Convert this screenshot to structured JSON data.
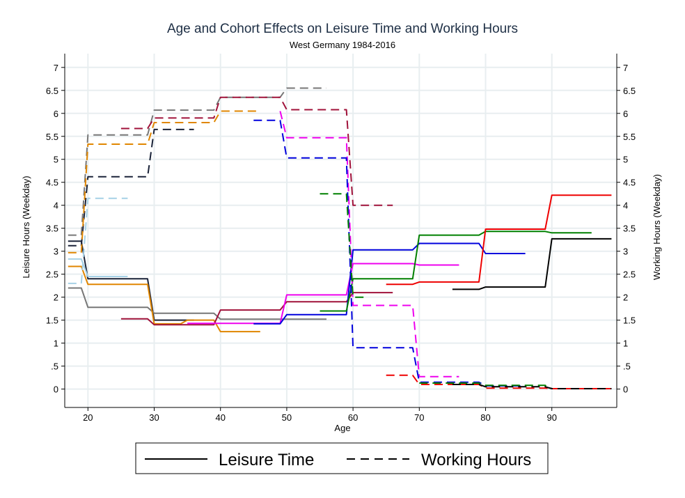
{
  "chart_data": {
    "type": "line",
    "title": "Age and Cohort Effects on Leisure Time and Working Hours",
    "subtitle": "West Germany 1984-2016",
    "xlabel": "Age",
    "ylabel_left": "Leisure Hours (Weekday)",
    "ylabel_right": "Working Hours (Weekday)",
    "xlim": [
      16.5,
      99.8
    ],
    "ylim": [
      -0.4,
      7.3
    ],
    "xticks": [
      "20",
      "30",
      "40",
      "50",
      "60",
      "70",
      "80",
      "90"
    ],
    "yticks_left": [
      "0",
      ".5",
      "1",
      "1.5",
      "2",
      "2.5",
      "3",
      "3.5",
      "4",
      "4.5",
      "5",
      "5.5",
      "6",
      "6.5",
      "7"
    ],
    "yticks_right": [
      "0",
      ".5",
      "1",
      "1.5",
      "2",
      "2.5",
      "3",
      "3.5",
      "4",
      "4.5",
      "5",
      "5.5",
      "6",
      "6.5",
      "7"
    ],
    "grid": true,
    "legend": {
      "position": "bottom",
      "entries": [
        {
          "label": "Leisure Time",
          "style": "solid"
        },
        {
          "label": "Working Hours",
          "style": "dashed"
        }
      ]
    },
    "series": [
      {
        "measure": "Leisure Time",
        "color": "#1a2238",
        "points": [
          [
            17,
            3.22
          ],
          [
            19,
            3.22
          ],
          [
            20,
            2.4
          ],
          [
            29,
            2.4
          ],
          [
            30,
            1.5
          ],
          [
            36,
            1.5
          ]
        ]
      },
      {
        "measure": "Leisure Time",
        "color": "#777777",
        "points": [
          [
            17,
            2.2
          ],
          [
            19,
            2.2
          ],
          [
            20,
            1.78
          ],
          [
            29,
            1.78
          ],
          [
            30,
            1.65
          ],
          [
            39,
            1.65
          ],
          [
            40,
            1.52
          ],
          [
            49,
            1.52
          ],
          [
            50,
            1.52
          ],
          [
            56,
            1.52
          ]
        ]
      },
      {
        "measure": "Leisure Time",
        "color": "#e08600",
        "points": [
          [
            17,
            2.67
          ],
          [
            19,
            2.67
          ],
          [
            20,
            2.28
          ],
          [
            29,
            2.28
          ],
          [
            30,
            1.42
          ],
          [
            34,
            1.42
          ],
          [
            35,
            1.5
          ],
          [
            39,
            1.5
          ],
          [
            40,
            1.25
          ],
          [
            46,
            1.25
          ]
        ]
      },
      {
        "measure": "Leisure Time",
        "color": "#a6d1e6",
        "points": [
          [
            17,
            2.83
          ],
          [
            19,
            2.83
          ],
          [
            20,
            2.45
          ],
          [
            26,
            2.45
          ]
        ]
      },
      {
        "measure": "Leisure Time",
        "color": "#a0123a",
        "points": [
          [
            25,
            1.53
          ],
          [
            29,
            1.53
          ],
          [
            30,
            1.4
          ],
          [
            39,
            1.4
          ],
          [
            40,
            1.72
          ],
          [
            49,
            1.72
          ],
          [
            50,
            1.9
          ],
          [
            59,
            1.9
          ],
          [
            60,
            2.1
          ],
          [
            66,
            2.1
          ]
        ]
      },
      {
        "measure": "Leisure Time",
        "color": "#ee00ee",
        "points": [
          [
            35,
            1.43
          ],
          [
            49,
            1.43
          ],
          [
            50,
            2.05
          ],
          [
            59,
            2.05
          ],
          [
            60,
            2.73
          ],
          [
            69,
            2.73
          ],
          [
            70,
            2.7
          ],
          [
            76,
            2.7
          ]
        ]
      },
      {
        "measure": "Leisure Time",
        "color": "#0000dd",
        "points": [
          [
            45,
            1.42
          ],
          [
            49,
            1.42
          ],
          [
            50,
            1.62
          ],
          [
            59,
            1.62
          ],
          [
            60,
            3.03
          ],
          [
            69,
            3.03
          ],
          [
            70,
            3.17
          ],
          [
            79,
            3.17
          ],
          [
            80,
            2.95
          ],
          [
            86,
            2.95
          ]
        ]
      },
      {
        "measure": "Leisure Time",
        "color": "#008000",
        "points": [
          [
            55,
            1.7
          ],
          [
            59,
            1.7
          ],
          [
            60,
            2.4
          ],
          [
            69,
            2.4
          ],
          [
            70,
            3.35
          ],
          [
            79,
            3.35
          ],
          [
            80,
            3.43
          ],
          [
            89,
            3.43
          ],
          [
            90,
            3.4
          ],
          [
            96,
            3.4
          ]
        ]
      },
      {
        "measure": "Leisure Time",
        "color": "#ee0000",
        "points": [
          [
            65,
            2.28
          ],
          [
            69,
            2.28
          ],
          [
            70,
            2.33
          ],
          [
            79,
            2.33
          ],
          [
            80,
            3.48
          ],
          [
            89,
            3.48
          ],
          [
            90,
            4.22
          ],
          [
            99,
            4.22
          ]
        ]
      },
      {
        "measure": "Leisure Time",
        "color": "#000000",
        "points": [
          [
            75,
            2.17
          ],
          [
            79,
            2.17
          ],
          [
            80,
            2.22
          ],
          [
            89,
            2.22
          ],
          [
            90,
            3.27
          ],
          [
            99,
            3.27
          ]
        ]
      },
      {
        "measure": "Working Hours",
        "color": "#1a2238",
        "points": [
          [
            17,
            3.12
          ],
          [
            19,
            3.12
          ],
          [
            20,
            4.62
          ],
          [
            29,
            4.62
          ],
          [
            30,
            5.65
          ],
          [
            36,
            5.65
          ]
        ]
      },
      {
        "measure": "Working Hours",
        "color": "#777777",
        "points": [
          [
            17,
            3.35
          ],
          [
            19,
            3.35
          ],
          [
            20,
            5.53
          ],
          [
            29,
            5.53
          ],
          [
            30,
            6.07
          ],
          [
            39,
            6.07
          ],
          [
            40,
            6.35
          ],
          [
            49,
            6.35
          ],
          [
            50,
            6.55
          ],
          [
            56,
            6.55
          ]
        ]
      },
      {
        "measure": "Working Hours",
        "color": "#e08600",
        "points": [
          [
            17,
            2.97
          ],
          [
            19,
            2.97
          ],
          [
            20,
            5.33
          ],
          [
            29,
            5.33
          ],
          [
            30,
            5.8
          ],
          [
            39,
            5.8
          ],
          [
            40,
            6.05
          ],
          [
            46,
            6.05
          ]
        ]
      },
      {
        "measure": "Working Hours",
        "color": "#a6d1e6",
        "points": [
          [
            17,
            2.3
          ],
          [
            19,
            2.3
          ],
          [
            20,
            4.15
          ],
          [
            26,
            4.15
          ]
        ]
      },
      {
        "measure": "Working Hours",
        "color": "#a0123a",
        "points": [
          [
            25,
            5.67
          ],
          [
            29,
            5.67
          ],
          [
            30,
            5.9
          ],
          [
            39,
            5.9
          ],
          [
            40,
            6.35
          ],
          [
            49,
            6.35
          ],
          [
            50,
            6.08
          ],
          [
            59,
            6.08
          ],
          [
            60,
            4.0
          ],
          [
            66,
            4.0
          ]
        ]
      },
      {
        "measure": "Working Hours",
        "color": "#ee00ee",
        "points": [
          [
            49,
            6.05
          ],
          [
            50,
            5.47
          ],
          [
            59,
            5.47
          ],
          [
            60,
            1.82
          ],
          [
            69,
            1.82
          ],
          [
            70,
            0.27
          ],
          [
            76,
            0.27
          ]
        ]
      },
      {
        "measure": "Working Hours",
        "color": "#0000dd",
        "points": [
          [
            45,
            5.85
          ],
          [
            49,
            5.85
          ],
          [
            50,
            5.03
          ],
          [
            59,
            5.03
          ],
          [
            60,
            0.9
          ],
          [
            69,
            0.9
          ],
          [
            70,
            0.15
          ],
          [
            79,
            0.15
          ],
          [
            80,
            0.07
          ],
          [
            86,
            0.07
          ]
        ]
      },
      {
        "measure": "Working Hours",
        "color": "#008000",
        "points": [
          [
            55,
            4.25
          ],
          [
            59,
            4.25
          ],
          [
            60,
            2.0
          ],
          [
            62,
            2.0
          ]
        ]
      },
      {
        "measure": "Working Hours",
        "color": "#008000",
        "points": [
          [
            70,
            0.13
          ],
          [
            79,
            0.13
          ],
          [
            80,
            0.08
          ],
          [
            89,
            0.08
          ],
          [
            90,
            0.01
          ],
          [
            96,
            0.01
          ]
        ]
      },
      {
        "measure": "Working Hours",
        "color": "#ee0000",
        "points": [
          [
            65,
            0.3
          ],
          [
            69,
            0.3
          ],
          [
            70,
            0.1
          ],
          [
            79,
            0.1
          ],
          [
            80,
            0.02
          ],
          [
            89,
            0.02
          ],
          [
            90,
            0.01
          ],
          [
            99,
            0.01
          ]
        ]
      },
      {
        "measure": "Working Hours",
        "color": "#000000",
        "points": [
          [
            75,
            0.1
          ],
          [
            79,
            0.1
          ],
          [
            80,
            0.05
          ],
          [
            89,
            0.05
          ],
          [
            90,
            0.01
          ],
          [
            99,
            0.01
          ]
        ]
      }
    ]
  }
}
